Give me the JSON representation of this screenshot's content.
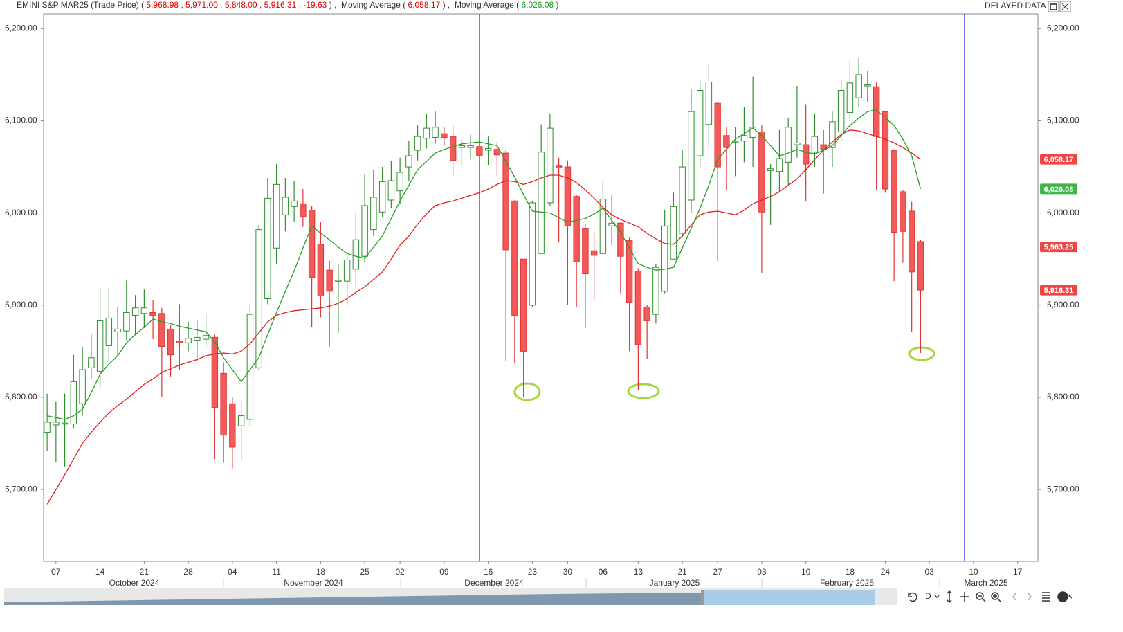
{
  "chart_data": {
    "type": "candlestick",
    "instrument": "EMINI S&P MAR25 (Trade Price)",
    "header_values": [
      "5,968.98",
      "5,971.00",
      "5,848.00",
      "5,916.31",
      "-19.63"
    ],
    "status": "DELAYED DATA",
    "interval": "D",
    "ohlc": {
      "open": [
        5762,
        5770,
        5771,
        5771,
        5793,
        5832,
        5828,
        5856,
        5871,
        5872,
        5889,
        5891,
        5892,
        5891,
        5874,
        5861,
        5859,
        5862,
        5863,
        5865,
        5826,
        5793,
        5769,
        5776,
        5832,
        5907,
        5962,
        5998,
        6007,
        6010,
        6003,
        5966,
        5938,
        5926,
        5926,
        5939,
        5953,
        5982,
        6001,
        6014,
        6024,
        6050,
        6068,
        6081,
        6082,
        6086,
        6083,
        6071,
        6071,
        6072,
        6068,
        6069,
        6065,
        6013,
        5950,
        5900,
        5956,
        6011,
        6051,
        6050,
        6018,
        5983,
        5959,
        5956,
        5986,
        5989,
        5970,
        5937,
        5898,
        5890,
        5915,
        5950,
        5978,
        6014,
        6062,
        6096,
        6119,
        6084,
        6077,
        6078,
        6082,
        6088,
        6046,
        6045,
        6055,
        6074,
        6074,
        6066,
        6074,
        6071,
        6088,
        6109,
        6125,
        6138,
        6137,
        6110,
        6068,
        6023,
        6002,
        5968.98
      ],
      "high": [
        5804,
        5795,
        5804,
        5846,
        5855,
        5868,
        5919,
        5918,
        5898,
        5927,
        5911,
        5917,
        5905,
        5897,
        5878,
        5901,
        5882,
        5883,
        5890,
        5868,
        5838,
        5800,
        5796,
        5900,
        5987,
        6038,
        6053,
        6038,
        6035,
        6026,
        6008,
        5990,
        5948,
        5945,
        5955,
        6000,
        6042,
        6047,
        6050,
        6056,
        6060,
        6078,
        6095,
        6107,
        6110,
        6093,
        6095,
        6080,
        6085,
        6085,
        6083,
        6077,
        6068,
        6014,
        5950,
        6013,
        6096,
        6108,
        6060,
        6057,
        6020,
        5988,
        5980,
        6034,
        6020,
        5990,
        5974,
        5940,
        5900,
        5945,
        6003,
        6022,
        6068,
        6134,
        6145,
        6162,
        6120,
        6093,
        6093,
        6115,
        6148,
        6095,
        6053,
        6090,
        6103,
        6138,
        6118,
        6108,
        6090,
        6110,
        6145,
        6166,
        6168,
        6154,
        6142,
        6111,
        6069,
        6025,
        6012,
        5971
      ],
      "low": [
        5742,
        5730,
        5725,
        5766,
        5780,
        5820,
        5810,
        5838,
        5845,
        5862,
        5868,
        5875,
        5863,
        5800,
        5822,
        5830,
        5850,
        5840,
        5855,
        5733,
        5729,
        5723,
        5732,
        5769,
        5830,
        5901,
        5945,
        5980,
        5990,
        5985,
        5876,
        5887,
        5855,
        5870,
        5900,
        5920,
        5946,
        5975,
        5996,
        6005,
        6010,
        6035,
        6057,
        6070,
        6075,
        6073,
        6039,
        6052,
        6058,
        6045,
        6052,
        6040,
        5840,
        5837,
        5800,
        5898,
        5956,
        6008,
        5968,
        5900,
        5898,
        5875,
        5905,
        5956,
        5965,
        5913,
        5850,
        5808,
        5842,
        5880,
        5913,
        5950,
        5974,
        6000,
        6050,
        6070,
        5948,
        6025,
        6040,
        6055,
        6050,
        5935,
        5987,
        6022,
        6030,
        6060,
        6013,
        6050,
        6021,
        6050,
        6078,
        6100,
        6115,
        6120,
        6025,
        6022,
        5926,
        5946,
        5871,
        5848
      ],
      "close": [
        5773,
        5773,
        5772,
        5817,
        5830,
        5843,
        5883,
        5886,
        5874,
        5892,
        5897,
        5897,
        5889,
        5855,
        5846,
        5859,
        5864,
        5865,
        5867,
        5789,
        5759,
        5746,
        5780,
        5890,
        5982,
        6016,
        6031,
        6017,
        6013,
        5996,
        5930,
        5910,
        5915,
        5927,
        5949,
        5971,
        6008,
        6017,
        6034,
        6035,
        6044,
        6062,
        6083,
        6092,
        6093,
        6082,
        6057,
        6073,
        6073,
        6062,
        6070,
        6063,
        5960,
        5889,
        5850,
        6011,
        6066,
        6092,
        6049,
        5986,
        5947,
        5934,
        5954,
        6015,
        5989,
        5953,
        5903,
        5857,
        5883,
        5941,
        5986,
        6007,
        6050,
        6110,
        6133,
        6142,
        6050,
        6071,
        6078,
        6084,
        6093,
        6001,
        6048,
        6059,
        6093,
        6076,
        6053,
        6083,
        6069,
        6099,
        6133,
        6141,
        6150,
        6139,
        6083,
        6026,
        5979,
        5980,
        5936,
        5916.31
      ]
    },
    "up_color": "#2f8f2f",
    "down_color": "#f25a5a",
    "series": [
      {
        "name": "Moving Average",
        "color": "#e02020",
        "last_label": "6,058.17",
        "values": [
          5684,
          5700,
          5716,
          5733,
          5750,
          5762,
          5773,
          5783,
          5791,
          5798,
          5806,
          5814,
          5820,
          5827,
          5831,
          5835,
          5838,
          5841,
          5845,
          5847,
          5848,
          5847,
          5850,
          5858,
          5870,
          5882,
          5889,
          5892,
          5894,
          5895,
          5896,
          5897,
          5899,
          5902,
          5907,
          5914,
          5920,
          5928,
          5936,
          5950,
          5965,
          5975,
          5988,
          5999,
          6008,
          6011,
          6013,
          6016,
          6019,
          6022,
          6026,
          6031,
          6035,
          6034,
          6031,
          6034,
          6038,
          6041,
          6041,
          6038,
          6033,
          6025,
          6016,
          6006,
          5998,
          5993,
          5989,
          5985,
          5978,
          5972,
          5967,
          5966,
          5975,
          5987,
          5998,
          6001,
          6002,
          6000,
          5998,
          6003,
          6010,
          6014,
          6018,
          6023,
          6030,
          6037,
          6047,
          6058,
          6068,
          6077,
          6085,
          6090,
          6089,
          6086,
          6083,
          6080,
          6076,
          6071,
          6065,
          6058.17
        ]
      },
      {
        "name": "Moving Average",
        "color": "#22a022",
        "last_label": "6,026.08",
        "values": [
          5780,
          5778,
          5776,
          5780,
          5787,
          5805,
          5825,
          5836,
          5845,
          5859,
          5868,
          5876,
          5885,
          5882,
          5880,
          5877,
          5875,
          5873,
          5871,
          5860,
          5843,
          5830,
          5817,
          5830,
          5843,
          5868,
          5892,
          5915,
          5937,
          5962,
          5986,
          5978,
          5971,
          5963,
          5956,
          5953,
          5951,
          5963,
          5975,
          5994,
          6013,
          6030,
          6047,
          6056,
          6065,
          6069,
          6072,
          6075,
          6076,
          6077,
          6075,
          6073,
          6056,
          6039,
          6020,
          6002,
          6001,
          6000,
          5995,
          5990,
          5992,
          5994,
          5999,
          6005,
          5992,
          5979,
          5962,
          5945,
          5941,
          5938,
          5939,
          5941,
          5962,
          5983,
          6005,
          6030,
          6058,
          6069,
          6080,
          6086,
          6092,
          6084,
          6073,
          6062,
          6065,
          6069,
          6066,
          6064,
          6068,
          6073,
          6084,
          6095,
          6103,
          6110,
          6112,
          6103,
          6095,
          6080,
          6062,
          6026.08
        ]
      }
    ],
    "price_tags": [
      {
        "value": 6058.17,
        "label": "6,058.17",
        "color": "#f04545"
      },
      {
        "value": 6026.08,
        "label": "6,026.08",
        "color": "#3fb54a"
      },
      {
        "value": 5963.25,
        "label": "5,963.25",
        "color": "#f04545"
      },
      {
        "value": 5916.31,
        "label": "5,916.31",
        "color": "#f04545"
      }
    ],
    "xlim": [
      -0.4,
      112.3
    ],
    "xticks": [
      {
        "value": 1,
        "label": "07"
      },
      {
        "value": 6,
        "label": "14"
      },
      {
        "value": 11,
        "label": "21"
      },
      {
        "value": 16,
        "label": "28"
      },
      {
        "value": 21,
        "label": "04"
      },
      {
        "value": 26,
        "label": "11"
      },
      {
        "value": 31,
        "label": "18"
      },
      {
        "value": 36,
        "label": "25"
      },
      {
        "value": 40,
        "label": "02"
      },
      {
        "value": 45,
        "label": "09"
      },
      {
        "value": 50,
        "label": "16"
      },
      {
        "value": 55,
        "label": "23"
      },
      {
        "value": 59,
        "label": "30"
      },
      {
        "value": 63,
        "label": "06"
      },
      {
        "value": 67,
        "label": "13"
      },
      {
        "value": 72,
        "label": "21"
      },
      {
        "value": 76,
        "label": "27"
      },
      {
        "value": 81,
        "label": "03"
      },
      {
        "value": 86,
        "label": "10"
      },
      {
        "value": 91,
        "label": "18"
      },
      {
        "value": 95,
        "label": "24"
      },
      {
        "value": 100,
        "label": "03"
      },
      {
        "value": 105,
        "label": "10"
      },
      {
        "value": 110,
        "label": "17"
      }
    ],
    "months": [
      "October 2024",
      "November 2024",
      "December 2024",
      "January 2025",
      "February 2025",
      "March 2025"
    ],
    "ylim": [
      5622,
      6216
    ],
    "yticks": [
      {
        "value": 5700,
        "label": "5,700.00"
      },
      {
        "value": 5800,
        "label": "5,800.00"
      },
      {
        "value": 5900,
        "label": "5,900.00"
      },
      {
        "value": 6000,
        "label": "6,000.00"
      },
      {
        "value": 6100,
        "label": "6,100.00"
      },
      {
        "value": 6200,
        "label": "6,200.00"
      }
    ]
  }
}
